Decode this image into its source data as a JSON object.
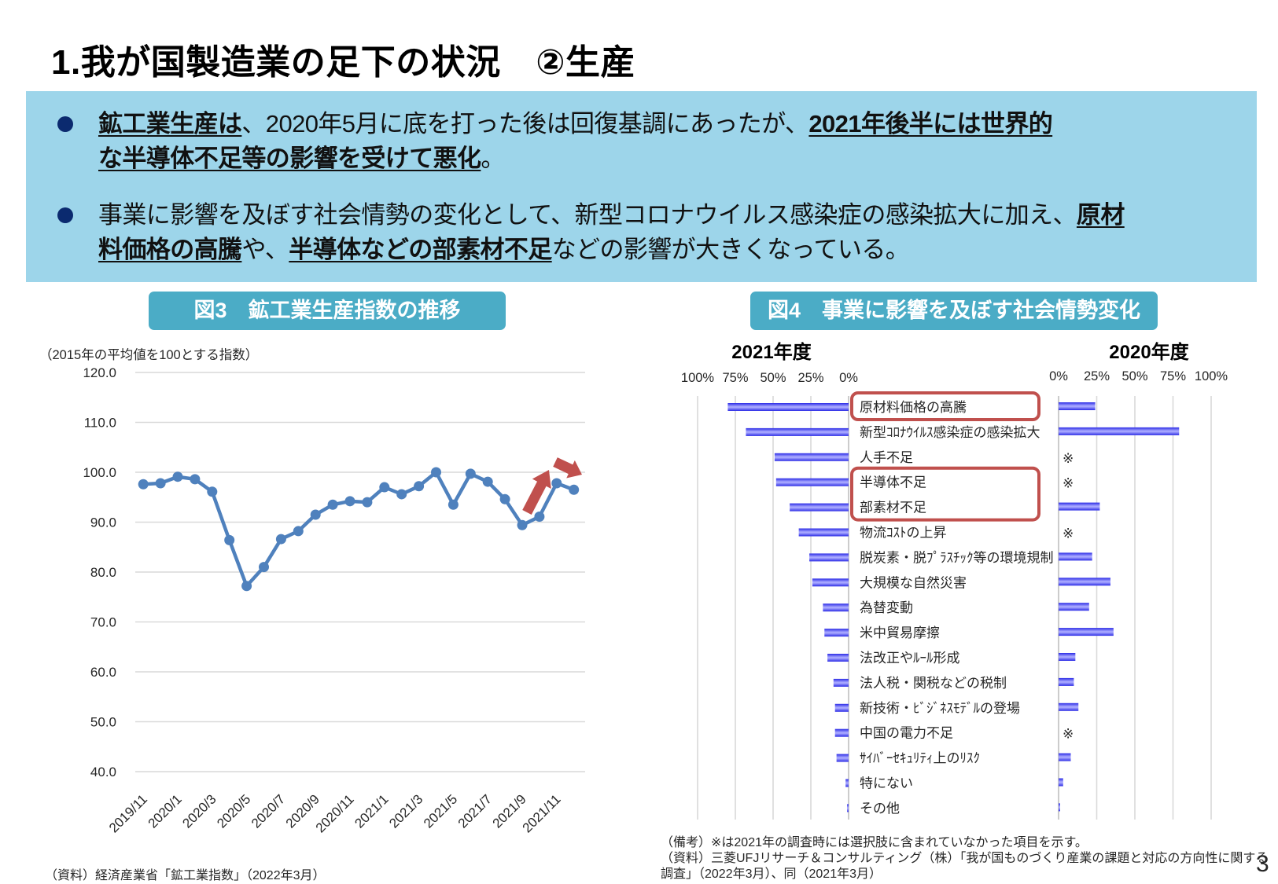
{
  "page": {
    "title": "1.我が国製造業の足下の状況　②生産",
    "page_number": "3"
  },
  "summary": {
    "bullet_1": {
      "line_1": {
        "s1_em": "鉱工業生産は",
        "s2": "、2020年5月に底を打った後は回復基調にあったが、",
        "s3_em": "2021年後半には世界的"
      },
      "line_2": {
        "s1_em": "な半導体不足等の影響を受けて悪化",
        "s2": "。"
      }
    },
    "bullet_2": {
      "line_1": {
        "s1": "事業に影響を及ぼす社会情勢の変化として、新型コロナウイルス感染症の感染拡大に加え、",
        "s2_em": "原材"
      },
      "line_2": {
        "s1_em": "料価格の高騰",
        "s2": "や、",
        "s3_em": "半導体などの部素材不足",
        "s4": "などの影響が大きくなっている。"
      }
    }
  },
  "figure_3": {
    "title": "図3　鉱工業生産指数の推移",
    "unit_note": "（2015年の平均値を100とする指数）",
    "source": "（資料）経済産業省「鉱工業指数」（2022年3月）"
  },
  "figure_4": {
    "title": "図4　事業に影響を及ぼす社会情勢変化",
    "left_header": "2021年度",
    "right_header": "2020年度",
    "note": "（備考）※は2021年の調査時には選択肢に含まれていなかった項目を示す。",
    "source_line_1": "（資料）三菱UFJリサーチ＆コンサルティング（株）「我が国ものづくり産業の課題と対応の方向性に関する",
    "source_line_2": "調査」（2022年3月）、同（2021年3月）"
  },
  "colors": {
    "summary_bg": "#9DD5EA",
    "figure_title_bg": "#4BACC6",
    "bullet_dot": "#0B2A6F",
    "line_series": "#4F81BD",
    "bar": "#3333EE",
    "bar_highlight": "#AAAAFF",
    "highlight_box": "#C0504D",
    "gridline": "#D9D9D9"
  },
  "chart_data": [
    {
      "type": "line",
      "title": "図3　鉱工業生産指数の推移",
      "ylabel": "（2015年の平均値を100とする指数）",
      "xlabel": "",
      "x": [
        "2019/11",
        "2019/12",
        "2020/1",
        "2020/2",
        "2020/3",
        "2020/4",
        "2020/5",
        "2020/6",
        "2020/7",
        "2020/8",
        "2020/9",
        "2020/10",
        "2020/11",
        "2020/12",
        "2021/1",
        "2021/2",
        "2021/3",
        "2021/4",
        "2021/5",
        "2021/6",
        "2021/7",
        "2021/8",
        "2021/9",
        "2021/10",
        "2021/11",
        "2021/12"
      ],
      "x_tick_labels": [
        "2019/11",
        "2020/1",
        "2020/3",
        "2020/5",
        "2020/7",
        "2020/9",
        "2020/11",
        "2021/1",
        "2021/3",
        "2021/5",
        "2021/7",
        "2021/9",
        "2021/11"
      ],
      "y_ticks": [
        120,
        110,
        100,
        90,
        80,
        70,
        60,
        50,
        40
      ],
      "y_tick_labels": [
        "120.0",
        "110.0",
        "100.0",
        "90.0",
        "80.0",
        "70.0",
        "60.0",
        "50.0",
        "40.0"
      ],
      "ylim": [
        40,
        120
      ],
      "grid": true,
      "legend": null,
      "series": [
        {
          "name": "鉱工業生産指数",
          "color": "#4F81BD",
          "values": [
            97.6,
            97.8,
            99.1,
            98.6,
            96.1,
            86.4,
            77.2,
            81.0,
            86.6,
            88.2,
            91.5,
            93.5,
            94.2,
            94.0,
            97.0,
            95.6,
            97.2,
            100.0,
            93.5,
            99.7,
            98.1,
            94.6,
            89.4,
            91.1,
            97.8,
            96.5
          ]
        }
      ],
      "annotations": [
        {
          "type": "arrow",
          "direction": "up",
          "near": "2021/9-2021/11",
          "color": "#C0504D"
        },
        {
          "type": "arrow",
          "direction": "down-right",
          "near": "2021/11-2021/12",
          "color": "#C0504D"
        }
      ]
    },
    {
      "type": "bar",
      "orientation": "horizontal-butterfly",
      "title": "図4　事業に影響を及ぼす社会情勢変化",
      "categories": [
        "原材料価格の高騰",
        "新型ｺﾛﾅｳｲﾙｽ感染症の感染拡大",
        "人手不足",
        "半導体不足",
        "部素材不足",
        "物流ｺｽﾄの上昇",
        "脱炭素・脱ﾌﾟﾗｽﾁｯｸ等の環境規制",
        "大規模な自然災害",
        "為替変動",
        "米中貿易摩擦",
        "法改正やﾙｰﾙ形成",
        "法人税・関税などの税制",
        "新技術・ﾋﾞｼﾞﾈｽﾓﾃﾞﾙの登場",
        "中国の電力不足",
        "ｻｲﾊﾞｰｾｷｭﾘﾃｨ上のﾘｽｸ",
        "特にない",
        "その他"
      ],
      "series": [
        {
          "name": "2021年度",
          "side": "left",
          "values": [
            80,
            68,
            49,
            48,
            39,
            33,
            26,
            24,
            17,
            16,
            14,
            10,
            9,
            9,
            8,
            2,
            1
          ]
        },
        {
          "name": "2020年度",
          "side": "right",
          "values": [
            24,
            79,
            null,
            null,
            27,
            null,
            22,
            34,
            20,
            36,
            11,
            10,
            13,
            null,
            8,
            3,
            1
          ]
        }
      ],
      "xlim": [
        0,
        100
      ],
      "x_ticks": [
        0,
        25,
        50,
        75,
        100
      ],
      "x_tick_labels": [
        "0%",
        "25%",
        "50%",
        "75%",
        "100%"
      ],
      "missing_marker": "※",
      "highlight_groups": [
        [
          0
        ],
        [
          3,
          4
        ]
      ],
      "grid": true,
      "legend": null
    }
  ]
}
